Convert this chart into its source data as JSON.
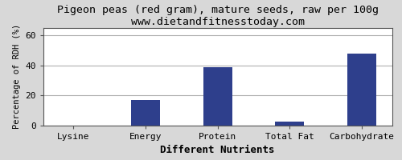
{
  "title": "Pigeon peas (red gram), mature seeds, raw per 100g",
  "subtitle": "www.dietandfitnesstoday.com",
  "xlabel": "Different Nutrients",
  "ylabel": "Percentage of RDH (%)",
  "categories": [
    "Lysine",
    "Energy",
    "Protein",
    "Total Fat",
    "Carbohydrate"
  ],
  "values": [
    0,
    17,
    39,
    2.5,
    48
  ],
  "bar_color": "#2e3f8c",
  "ylim": [
    0,
    65
  ],
  "yticks": [
    0,
    20,
    40,
    60
  ],
  "background_color": "#d8d8d8",
  "plot_bg_color": "#ffffff",
  "title_fontsize": 9.5,
  "subtitle_fontsize": 8.5,
  "xlabel_fontsize": 9,
  "ylabel_fontsize": 7.5,
  "tick_fontsize": 8,
  "grid_color": "#b0b0b0",
  "border_color": "#555555"
}
